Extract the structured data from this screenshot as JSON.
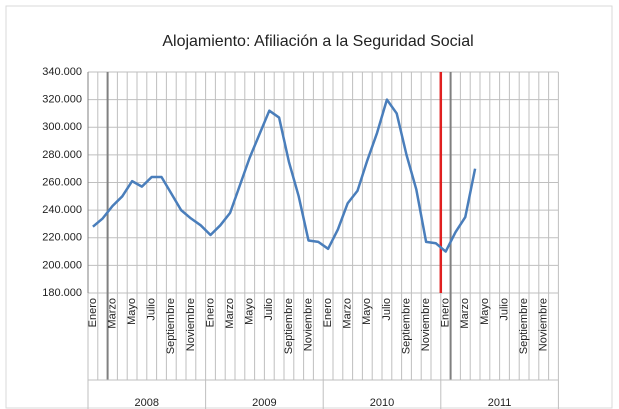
{
  "chart_data": {
    "type": "line",
    "title": "Alojamiento: Afiliación a la Seguridad Social",
    "categories": [
      "Enero",
      null,
      "Marzo",
      null,
      "Mayo",
      null,
      "Julio",
      null,
      "Septiembre",
      null,
      "Noviembre",
      null,
      "Enero",
      null,
      "Marzo",
      null,
      "Mayo",
      null,
      "Julio",
      null,
      "Septiembre",
      null,
      "Noviembre",
      null,
      "Enero",
      null,
      "Marzo",
      null,
      "Mayo",
      null,
      "Julio",
      null,
      "Septiembre",
      null,
      "Noviembre",
      null,
      "Enero",
      null,
      "Marzo",
      null,
      "Mayo",
      null,
      "Julio",
      null,
      "Septiembre",
      null,
      "Noviembre",
      null
    ],
    "year_labels": [
      "2008",
      "2009",
      "2010",
      "2011"
    ],
    "series": [
      {
        "color": "#4a7ebb",
        "values": [
          228000,
          234000,
          243000,
          250000,
          261000,
          257000,
          264000,
          264000,
          252000,
          240000,
          234000,
          229000,
          222000,
          229000,
          238000,
          258000,
          278000,
          295000,
          312000,
          307000,
          275000,
          250000,
          218000,
          217000,
          212000,
          226000,
          245000,
          254000,
          276000,
          296000,
          320000,
          310000,
          280000,
          255000,
          217000,
          216000,
          210000,
          224000,
          235000,
          270000,
          null,
          null,
          null,
          null,
          null,
          null,
          null,
          null
        ]
      }
    ],
    "ylim": [
      180000,
      340000
    ],
    "yticks": [
      {
        "value": 180000,
        "label": "180.000"
      },
      {
        "value": 200000,
        "label": "200.000"
      },
      {
        "value": 220000,
        "label": "220.000"
      },
      {
        "value": 240000,
        "label": "240.000"
      },
      {
        "value": 260000,
        "label": "260.000"
      },
      {
        "value": 280000,
        "label": "280.000"
      },
      {
        "value": 300000,
        "label": "300.000"
      },
      {
        "value": 320000,
        "label": "320.000"
      },
      {
        "value": 340000,
        "label": "340.000"
      }
    ],
    "grid": true
  }
}
